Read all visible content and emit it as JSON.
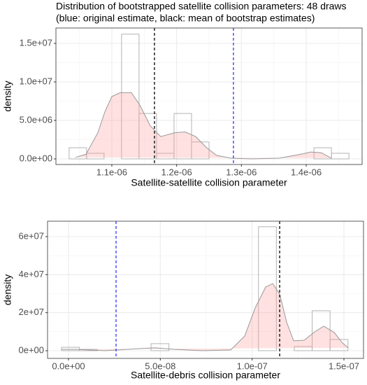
{
  "chart_data": [
    {
      "type": "histogram",
      "title": "Distribution of bootstrapped satellite collision parameters: 48 draws",
      "subtitle": "(blue: original estimate, black: mean of bootstrap estimates)",
      "xlabel": "Satellite-satellite collision parameter",
      "ylabel": "density",
      "bins": [
        1.034e-06,
        1.061e-06,
        1.088e-06,
        1.115e-06,
        1.142e-06,
        1.169e-06,
        1.196e-06,
        1.223e-06,
        1.25e-06,
        1.277e-06,
        1.304e-06,
        1.331e-06,
        1.358e-06,
        1.385e-06,
        1.412e-06,
        1.439e-06,
        1.466e-06
      ],
      "values": [
        1450000,
        730000,
        0,
        16200000,
        5900000,
        730000,
        5900000,
        2200000,
        0,
        0,
        0,
        0,
        0,
        0,
        1450000,
        730000
      ],
      "color": "#b3b3b3",
      "density": {
        "color": "#999999",
        "fill": "#ff9c9c",
        "x": [
          1.0439e-06,
          1.0601e-06,
          1.0784e-06,
          1.0892e-06,
          1.1e-06,
          1.1129e-06,
          1.1302e-06,
          1.1431e-06,
          1.1593e-06,
          1.1755e-06,
          1.1971e-06,
          1.2133e-06,
          1.2294e-06,
          1.2456e-06,
          1.2618e-06,
          1.2834e-06,
          1.3157e-06,
          1.3589e-06,
          1.3913e-06,
          1.4074e-06,
          1.4236e-06,
          1.4387e-06
        ],
        "values": [
          200000,
          600000,
          3400000,
          6100000,
          8100000,
          8600000,
          8600000,
          7000000,
          4300000,
          2900000,
          3400000,
          3500000,
          2900000,
          1500000,
          450000,
          100000,
          0,
          100000,
          600000,
          900000,
          800000,
          100000
        ]
      },
      "vlines": [
        {
          "x": 1.1658e-06,
          "color": "#000000"
        },
        {
          "x": 1.2877e-06,
          "color": "#3333ff"
        }
      ],
      "xlim": [
        1.0137e-06,
        1.4863e-06
      ],
      "xticks": [
        {
          "value": 1.1e-06,
          "label": "1.1e-06"
        },
        {
          "value": 1.2e-06,
          "label": "1.2e-06"
        },
        {
          "value": 1.3e-06,
          "label": "1.3e-06"
        },
        {
          "value": 1.4e-06,
          "label": "1.4e-06"
        }
      ],
      "ylim": [
        -727000,
        17000000
      ],
      "yticks": [
        {
          "value": 0,
          "label": "0.0e+00"
        },
        {
          "value": 5000000,
          "label": "5.0e+06"
        },
        {
          "value": 10000000,
          "label": "1.0e+07"
        },
        {
          "value": 15000000,
          "label": "1.5e+07"
        }
      ],
      "grid": true
    },
    {
      "type": "histogram",
      "xlabel": "Satellite-debris collision parameter",
      "ylabel": "density",
      "bins": [
        -3.8e-09,
        5.95e-09,
        1.57e-08,
        2.545e-08,
        3.52e-08,
        4.495e-08,
        5.47e-08,
        6.445e-08,
        7.42e-08,
        8.395e-08,
        9.37e-08,
        1.0345e-07,
        1.132e-07,
        1.2295e-07,
        1.327e-07,
        1.4245e-07,
        1.522e-07
      ],
      "values": [
        1800000,
        700000,
        0,
        0,
        0,
        3700000,
        0,
        0,
        0,
        0,
        0,
        65200000,
        0,
        2200000,
        21000000,
        5900000
      ],
      "color": "#b3b3b3",
      "density": {
        "color": "#999999",
        "fill": "#ff9c9c",
        "x": [
          -3.81e-09,
          4.57e-09,
          1.98e-08,
          3.884e-08,
          4.722e-08,
          5.788e-08,
          7.311e-08,
          8.835e-08,
          9.596e-08,
          1.0168e-07,
          1.0739e-07,
          1.112e-07,
          1.1501e-07,
          1.1881e-07,
          1.2262e-07,
          1.2834e-07,
          1.3405e-07,
          1.39e-07,
          1.4471e-07,
          1.4928e-07,
          1.5232e-07
        ],
        "values": [
          700000,
          700000,
          0,
          1100000,
          1500000,
          700000,
          0,
          400000,
          7700000,
          22500000,
          33500000,
          35300000,
          29800000,
          15000000,
          5200000,
          5500000,
          9900000,
          12900000,
          9600000,
          4000000,
          1500000
        ]
      },
      "vlines": [
        {
          "x": 2.59e-08,
          "color": "#3333ff"
        },
        {
          "x": 1.15e-07,
          "color": "#000000"
        }
      ],
      "xlim": [
        -1.142e-08,
        1.6066e-07
      ],
      "xticks": [
        {
          "value": 0,
          "label": "0.0e+00"
        },
        {
          "value": 5e-08,
          "label": "5.0e-08"
        },
        {
          "value": 1e-07,
          "label": "1.0e-07"
        },
        {
          "value": 1.5e-07,
          "label": "1.5e-07"
        }
      ],
      "ylim": [
        -4050000,
        68100000
      ],
      "yticks": [
        {
          "value": 0,
          "label": "0e+00"
        },
        {
          "value": 20000000,
          "label": "2e+07"
        },
        {
          "value": 40000000,
          "label": "4e+07"
        },
        {
          "value": 60000000,
          "label": "6e+07"
        }
      ],
      "grid": true
    }
  ]
}
